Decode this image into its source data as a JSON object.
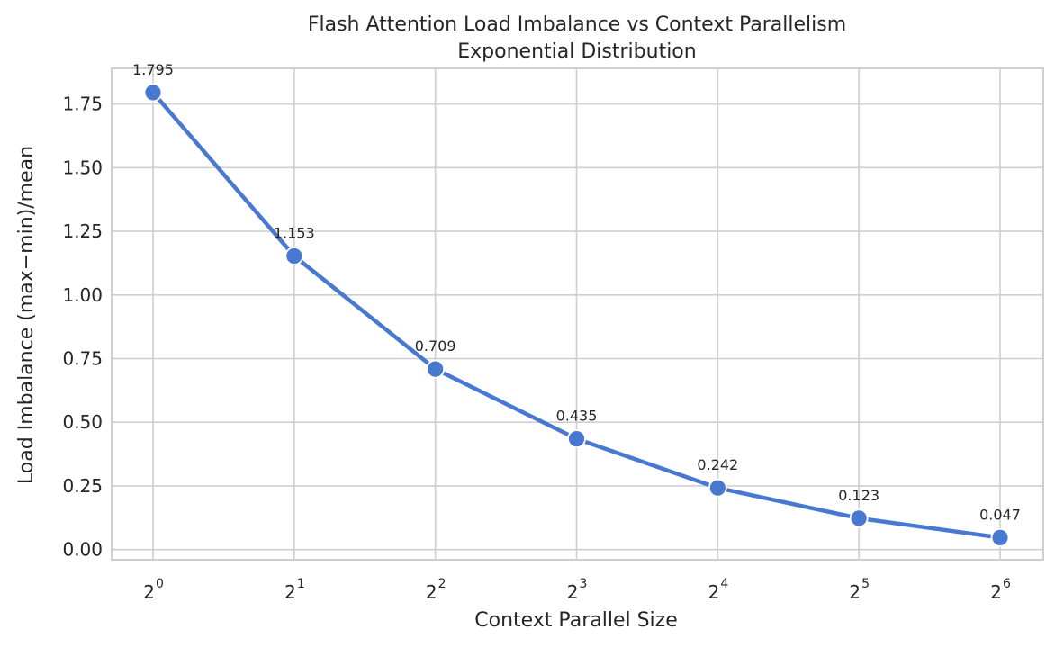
{
  "chart_data": {
    "type": "line",
    "title": "Flash Attention Load Imbalance vs Context Parallelism",
    "subtitle": "Exponential Distribution",
    "xlabel": "Context Parallel Size",
    "ylabel": "Load Imbalance (max−min)/mean",
    "x_scale": "log2",
    "x": [
      1,
      2,
      4,
      8,
      16,
      32,
      64
    ],
    "x_tick_labels": [
      {
        "base": "2",
        "exp": "0"
      },
      {
        "base": "2",
        "exp": "1"
      },
      {
        "base": "2",
        "exp": "2"
      },
      {
        "base": "2",
        "exp": "3"
      },
      {
        "base": "2",
        "exp": "4"
      },
      {
        "base": "2",
        "exp": "5"
      },
      {
        "base": "2",
        "exp": "6"
      }
    ],
    "series": [
      {
        "values": [
          1.795,
          1.153,
          0.709,
          0.435,
          0.242,
          0.123,
          0.047
        ],
        "data_labels": [
          "1.795",
          "1.153",
          "0.709",
          "0.435",
          "0.242",
          "0.123",
          "0.047"
        ],
        "color": "#4878cf"
      }
    ],
    "y_ticks": [
      0.0,
      0.25,
      0.5,
      0.75,
      1.0,
      1.25,
      1.5,
      1.75
    ],
    "y_tick_labels": [
      "0.00",
      "0.25",
      "0.50",
      "0.75",
      "1.00",
      "1.25",
      "1.50",
      "1.75"
    ],
    "ylim": [
      -0.04,
      1.89
    ],
    "grid": true,
    "legend": "none"
  }
}
